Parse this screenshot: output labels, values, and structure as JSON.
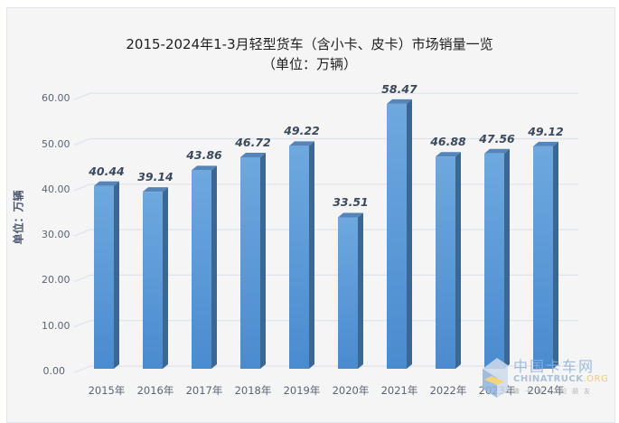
{
  "chart_data": {
    "type": "bar",
    "title": "2015-2024年1-3月轻型货车（含小卡、皮卡）市场销量一览",
    "subtitle": "（单位：万辆）",
    "xlabel": "",
    "ylabel": "单位：万辆",
    "categories": [
      "2015年",
      "2016年",
      "2017年",
      "2018年",
      "2019年",
      "2020年",
      "2021年",
      "2022年",
      "2023年",
      "2024年"
    ],
    "values": [
      40.44,
      39.14,
      43.86,
      46.72,
      49.22,
      33.51,
      58.47,
      46.88,
      47.56,
      49.12
    ],
    "value_labels": [
      "40.44",
      "39.14",
      "43.86",
      "46.72",
      "49.22",
      "33.51",
      "58.47",
      "46.88",
      "47.56",
      "49.12"
    ],
    "yticks": [
      "0.00",
      "10.00",
      "20.00",
      "30.00",
      "40.00",
      "50.00",
      "60.00"
    ],
    "ylim": [
      0,
      60
    ],
    "grid": true,
    "legend": "none",
    "style": "3d-column"
  },
  "colors": {
    "bar_front_top": "#6ea8df",
    "bar_front_bottom": "#4a8bcf",
    "bar_side": "#3b6792",
    "bar_top": "#5585b8",
    "gridline": "#dde3ec",
    "background": "#f5f5f5"
  },
  "watermark": {
    "cn": "中国卡车网",
    "en_main": "CHINATRUCK",
    "en_suffix": ".ORG",
    "sub": "做卡车人的朋友"
  }
}
